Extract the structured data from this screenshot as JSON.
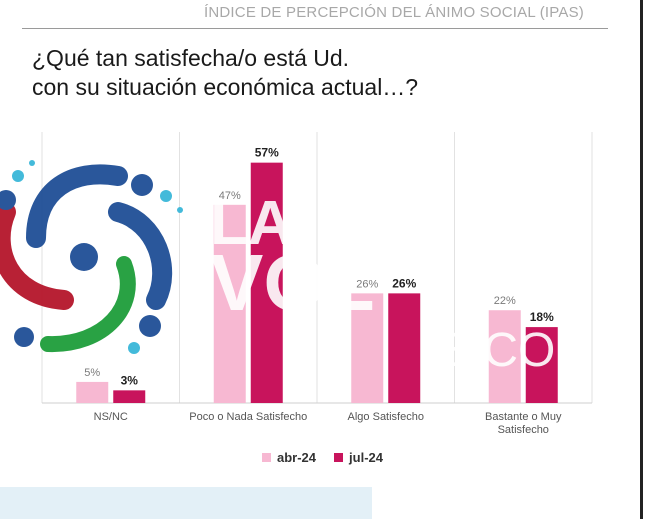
{
  "header": {
    "title": "ÍNDICE DE PERCEPCIÓN DEL ÁNIMO SOCIAL (IPAS)"
  },
  "question": {
    "line1": "¿Qué tan satisfecha/o está Ud.",
    "line2": "con su situación económica actual…?"
  },
  "colors": {
    "abr": "#f7b8d2",
    "jul": "#c8145c",
    "grid": "#e2e2e2",
    "watermark_blue": "#1f4f96",
    "watermark_red": "#b5162b",
    "watermark_green": "#1e9e3a",
    "watermark_teal": "#39b7d9"
  },
  "chart_data": {
    "type": "bar",
    "categories": [
      "NS/NC",
      "Poco o Nada Satisfecho",
      "Algo Satisfecho",
      "Bastante o Muy Satisfecho"
    ],
    "category_lines": [
      [
        "NS/NC"
      ],
      [
        "Poco o Nada Satisfecho"
      ],
      [
        "Algo Satisfecho"
      ],
      [
        "Bastante o Muy",
        "Satisfecho"
      ]
    ],
    "series": [
      {
        "name": "abr-24",
        "values": [
          5,
          47,
          26,
          22
        ],
        "labels": [
          "5%",
          "47%",
          "26%",
          "22%"
        ]
      },
      {
        "name": "jul-24",
        "values": [
          3,
          57,
          26,
          18
        ],
        "labels": [
          "3%",
          "57%",
          "26%",
          "18%"
        ]
      }
    ],
    "ylim": [
      0,
      60
    ],
    "grid": true,
    "legend": "bottom"
  },
  "watermark": {
    "text_la": "LA",
    "text_voz": "VOZ",
    "text_com": "E.COM"
  }
}
